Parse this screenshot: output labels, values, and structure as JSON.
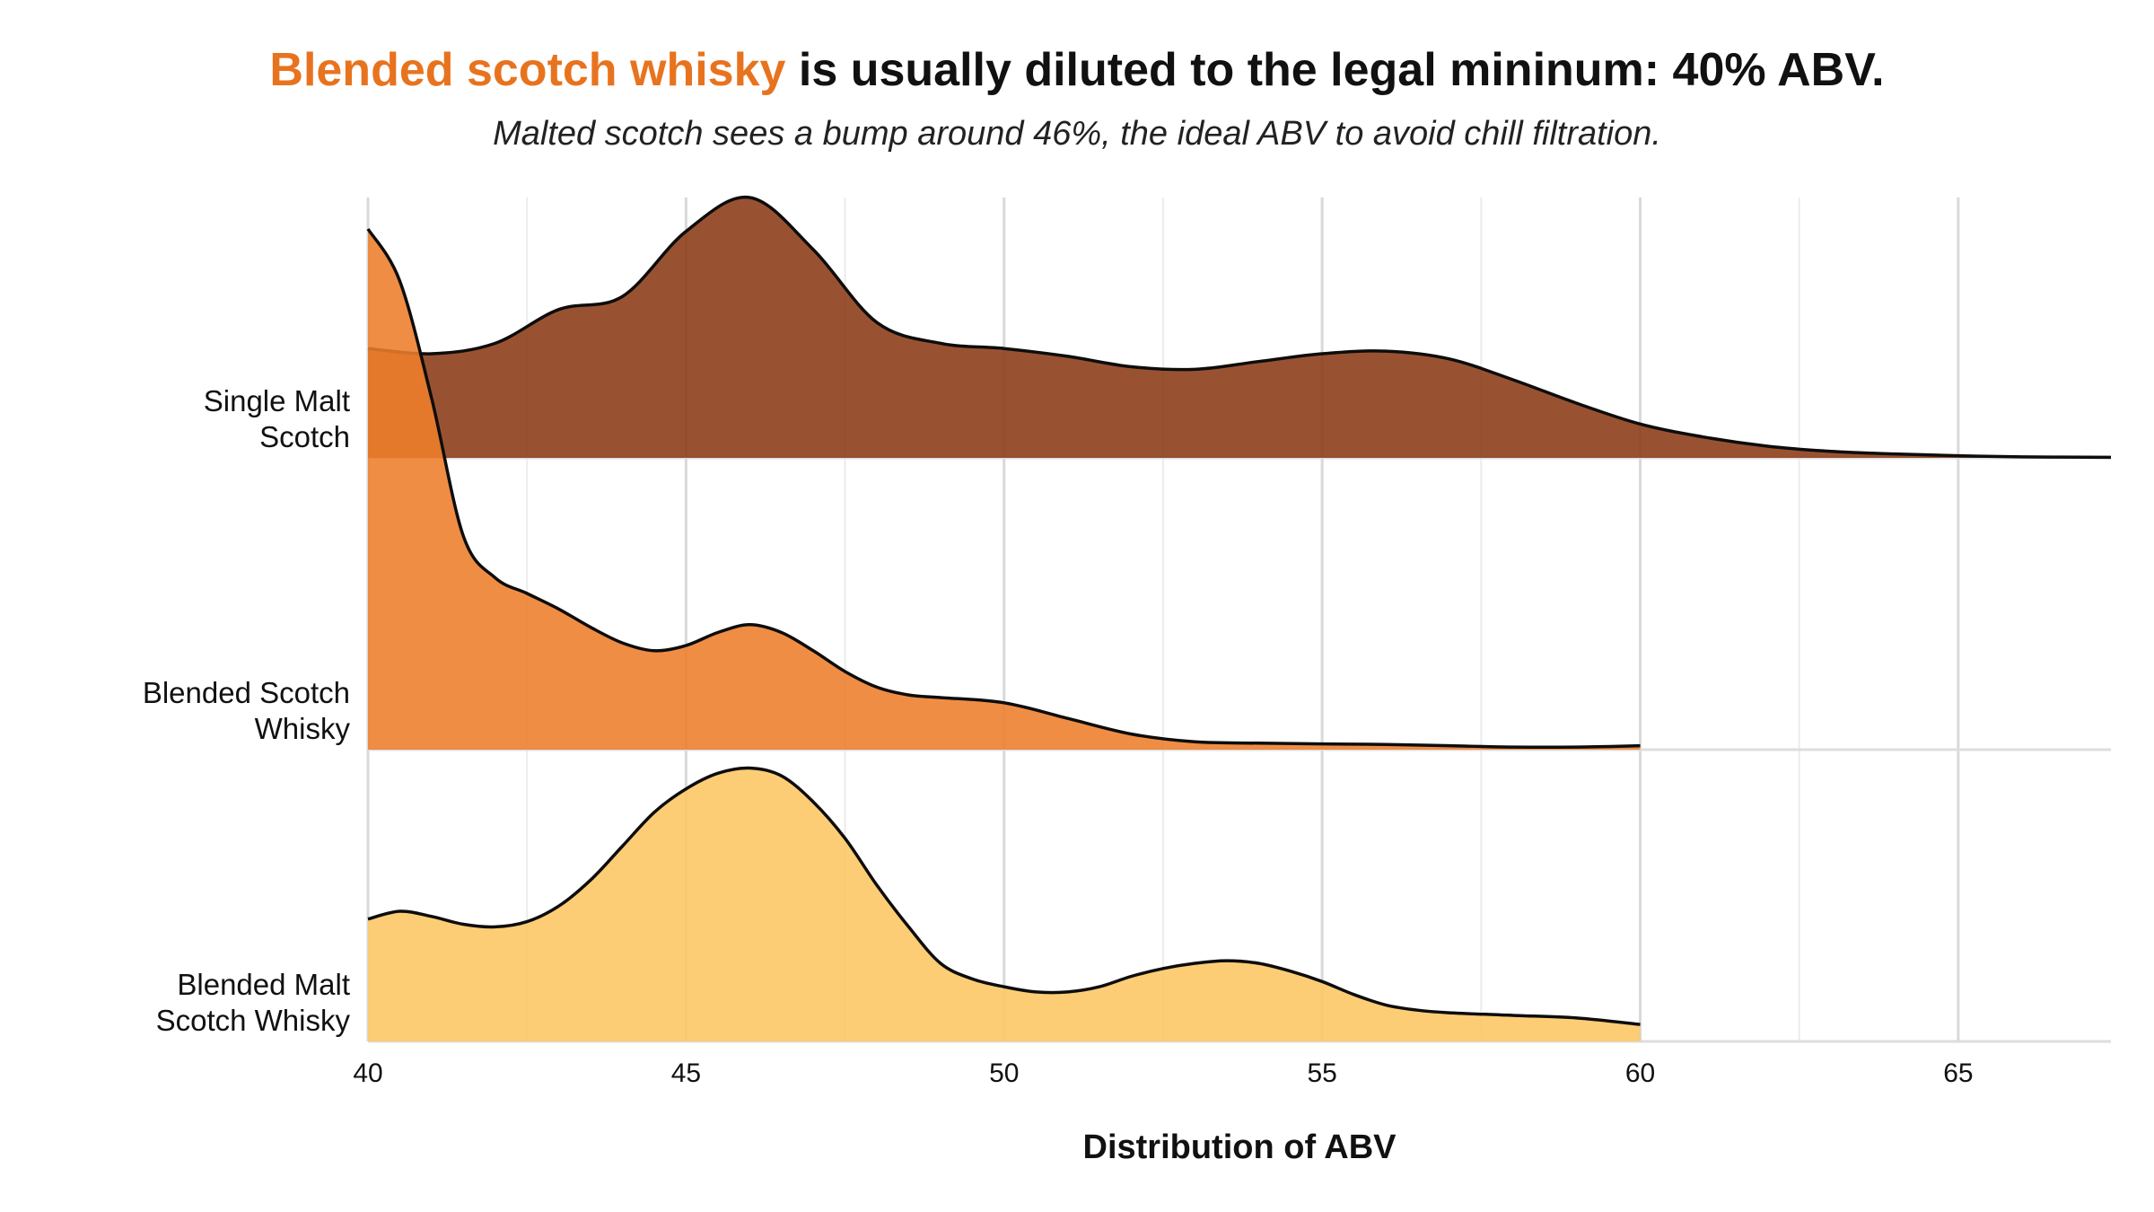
{
  "title": {
    "highlight": "Blended scotch whisky",
    "rest": " is usually diluted to the legal mininum: 40% ABV."
  },
  "subtitle": "Malted scotch sees a bump around 46%, the ideal ABV to avoid chill filtration.",
  "chart_data": {
    "type": "area",
    "subtype": "ridgeline-density",
    "xlabel": "Distribution of ABV",
    "ylabel": "",
    "xlim": [
      40,
      67.4
    ],
    "x_ticks": [
      40,
      45,
      50,
      55,
      60,
      65
    ],
    "grid": true,
    "categories": [
      "Single Malt Scotch",
      "Blended Scotch Whisky",
      "Blended Malt Scotch Whisky"
    ],
    "series": [
      {
        "name": "Single Malt Scotch",
        "color": "#8B3A14",
        "label_lines": [
          "Single Malt",
          "Scotch"
        ],
        "points": [
          [
            40,
            0.42
          ],
          [
            41,
            0.4
          ],
          [
            42,
            0.44
          ],
          [
            43,
            0.57
          ],
          [
            44,
            0.62
          ],
          [
            45,
            0.87
          ],
          [
            46,
            1.0
          ],
          [
            47,
            0.8
          ],
          [
            48,
            0.52
          ],
          [
            49,
            0.44
          ],
          [
            50,
            0.42
          ],
          [
            51,
            0.39
          ],
          [
            52,
            0.35
          ],
          [
            53,
            0.34
          ],
          [
            54,
            0.37
          ],
          [
            55,
            0.4
          ],
          [
            56,
            0.41
          ],
          [
            57,
            0.38
          ],
          [
            58,
            0.3
          ],
          [
            59,
            0.21
          ],
          [
            60,
            0.13
          ],
          [
            61,
            0.08
          ],
          [
            62,
            0.045
          ],
          [
            63,
            0.025
          ],
          [
            64,
            0.015
          ],
          [
            65,
            0.008
          ],
          [
            66,
            0.004
          ],
          [
            67.4,
            0.002
          ]
        ]
      },
      {
        "name": "Blended Scotch Whisky",
        "color": "#EE7D2A",
        "label_lines": [
          "Blended Scotch",
          "Whisky"
        ],
        "points": [
          [
            40,
            2.0
          ],
          [
            40.5,
            1.8
          ],
          [
            41,
            1.35
          ],
          [
            41.5,
            0.82
          ],
          [
            42,
            0.66
          ],
          [
            42.5,
            0.6
          ],
          [
            43,
            0.54
          ],
          [
            43.5,
            0.47
          ],
          [
            44,
            0.41
          ],
          [
            44.5,
            0.38
          ],
          [
            45,
            0.4
          ],
          [
            45.5,
            0.45
          ],
          [
            46,
            0.48
          ],
          [
            46.5,
            0.45
          ],
          [
            47,
            0.38
          ],
          [
            47.5,
            0.3
          ],
          [
            48,
            0.24
          ],
          [
            48.5,
            0.21
          ],
          [
            49,
            0.2
          ],
          [
            50,
            0.18
          ],
          [
            51,
            0.12
          ],
          [
            52,
            0.06
          ],
          [
            53,
            0.03
          ],
          [
            54,
            0.025
          ],
          [
            55,
            0.022
          ],
          [
            56,
            0.02
          ],
          [
            57,
            0.015
          ],
          [
            58,
            0.01
          ],
          [
            59,
            0.01
          ],
          [
            60,
            0.015
          ]
        ]
      },
      {
        "name": "Blended Malt Scotch Whisky",
        "color": "#FDC663",
        "label_lines": [
          "Blended Malt",
          "Scotch Whisky"
        ],
        "points": [
          [
            40,
            0.47
          ],
          [
            40.5,
            0.5
          ],
          [
            41,
            0.48
          ],
          [
            41.5,
            0.45
          ],
          [
            42,
            0.44
          ],
          [
            42.5,
            0.46
          ],
          [
            43,
            0.52
          ],
          [
            43.5,
            0.62
          ],
          [
            44,
            0.75
          ],
          [
            44.5,
            0.88
          ],
          [
            45,
            0.97
          ],
          [
            45.5,
            1.03
          ],
          [
            46,
            1.05
          ],
          [
            46.5,
            1.02
          ],
          [
            47,
            0.92
          ],
          [
            47.5,
            0.78
          ],
          [
            48,
            0.6
          ],
          [
            48.5,
            0.44
          ],
          [
            49,
            0.3
          ],
          [
            49.5,
            0.24
          ],
          [
            50,
            0.21
          ],
          [
            50.5,
            0.19
          ],
          [
            51,
            0.19
          ],
          [
            51.5,
            0.21
          ],
          [
            52,
            0.25
          ],
          [
            52.5,
            0.28
          ],
          [
            53,
            0.3
          ],
          [
            53.5,
            0.31
          ],
          [
            54,
            0.3
          ],
          [
            54.5,
            0.27
          ],
          [
            55,
            0.23
          ],
          [
            55.5,
            0.18
          ],
          [
            56,
            0.14
          ],
          [
            56.5,
            0.12
          ],
          [
            57,
            0.11
          ],
          [
            58,
            0.1
          ],
          [
            59,
            0.09
          ],
          [
            60,
            0.065
          ]
        ]
      }
    ]
  }
}
